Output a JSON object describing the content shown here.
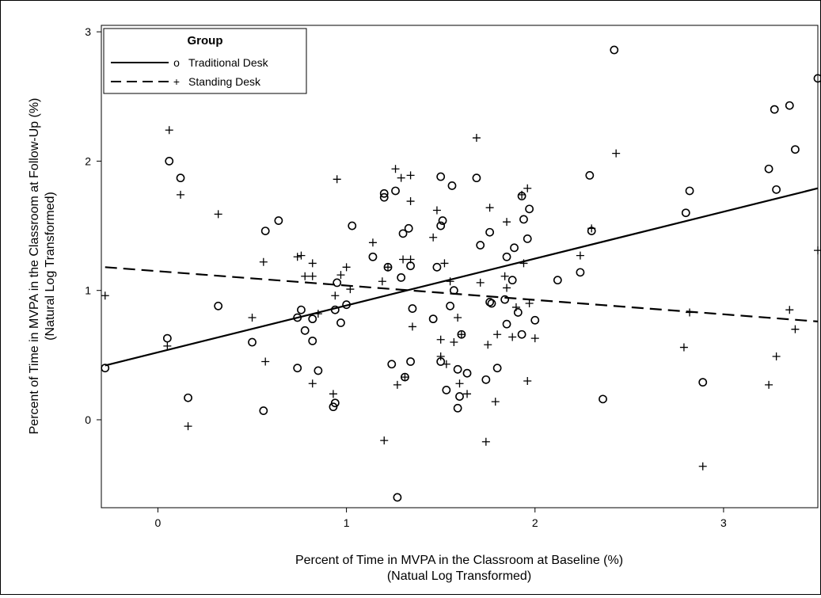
{
  "chart_data": {
    "type": "scatter",
    "xlabel_lines": [
      "Percent of Time in MVPA in the Classroom at Baseline (%)",
      "(Natual Log Transformed)"
    ],
    "ylabel_lines": [
      "Percent of Time in MVPA in the Classroom at Follow-Up (%)",
      "(Natural Log Transformed)"
    ],
    "xlim": [
      -0.3,
      3.5
    ],
    "ylim": [
      -0.68,
      3.05
    ],
    "x_ticks": [
      0,
      1,
      2,
      3
    ],
    "y_ticks": [
      0,
      1,
      2,
      3
    ],
    "grid": false,
    "legend": {
      "title": "Group",
      "placement": "top-left",
      "entries": [
        {
          "name": "Traditional Desk",
          "marker": "o",
          "line": "solid"
        },
        {
          "name": "Standing Desk",
          "marker": "+",
          "line": "dashed"
        }
      ]
    },
    "series": [
      {
        "name": "Traditional Desk",
        "marker": "circle",
        "fit_line": {
          "x": [
            -0.28,
            3.5
          ],
          "y": [
            0.42,
            1.79
          ]
        },
        "points": [
          [
            -0.28,
            0.4
          ],
          [
            0.05,
            0.63
          ],
          [
            0.06,
            2.0
          ],
          [
            0.12,
            1.87
          ],
          [
            0.16,
            0.17
          ],
          [
            0.32,
            0.88
          ],
          [
            0.5,
            0.6
          ],
          [
            0.56,
            0.07
          ],
          [
            0.57,
            1.46
          ],
          [
            0.64,
            1.54
          ],
          [
            0.74,
            0.79
          ],
          [
            0.74,
            0.4
          ],
          [
            0.76,
            0.85
          ],
          [
            0.78,
            0.69
          ],
          [
            0.82,
            0.61
          ],
          [
            0.82,
            0.78
          ],
          [
            0.85,
            0.38
          ],
          [
            0.93,
            0.1
          ],
          [
            0.94,
            0.13
          ],
          [
            0.95,
            1.06
          ],
          [
            0.94,
            0.85
          ],
          [
            0.97,
            0.75
          ],
          [
            1.0,
            0.89
          ],
          [
            1.03,
            1.5
          ],
          [
            1.14,
            1.26
          ],
          [
            1.2,
            1.75
          ],
          [
            1.2,
            1.72
          ],
          [
            1.22,
            1.18
          ],
          [
            1.24,
            0.43
          ],
          [
            1.26,
            1.77
          ],
          [
            1.27,
            -0.6
          ],
          [
            1.29,
            1.1
          ],
          [
            1.3,
            1.44
          ],
          [
            1.31,
            0.33
          ],
          [
            1.33,
            1.48
          ],
          [
            1.34,
            0.45
          ],
          [
            1.34,
            1.19
          ],
          [
            1.35,
            0.86
          ],
          [
            1.46,
            0.78
          ],
          [
            1.48,
            1.18
          ],
          [
            1.5,
            1.88
          ],
          [
            1.5,
            1.5
          ],
          [
            1.5,
            0.45
          ],
          [
            1.51,
            1.54
          ],
          [
            1.53,
            0.23
          ],
          [
            1.55,
            0.88
          ],
          [
            1.56,
            1.81
          ],
          [
            1.57,
            1.0
          ],
          [
            1.59,
            0.09
          ],
          [
            1.59,
            0.39
          ],
          [
            1.6,
            0.18
          ],
          [
            1.61,
            0.66
          ],
          [
            1.64,
            0.36
          ],
          [
            1.69,
            1.87
          ],
          [
            1.71,
            1.35
          ],
          [
            1.74,
            0.31
          ],
          [
            1.76,
            1.45
          ],
          [
            1.76,
            0.91
          ],
          [
            1.77,
            0.9
          ],
          [
            1.8,
            0.4
          ],
          [
            1.84,
            0.93
          ],
          [
            1.85,
            1.26
          ],
          [
            1.85,
            0.74
          ],
          [
            1.88,
            1.08
          ],
          [
            1.89,
            1.33
          ],
          [
            1.91,
            0.83
          ],
          [
            1.93,
            0.66
          ],
          [
            1.93,
            1.73
          ],
          [
            1.94,
            1.55
          ],
          [
            1.96,
            1.4
          ],
          [
            1.97,
            1.63
          ],
          [
            2.0,
            0.77
          ],
          [
            2.12,
            1.08
          ],
          [
            2.24,
            1.14
          ],
          [
            2.29,
            1.89
          ],
          [
            2.3,
            1.46
          ],
          [
            2.36,
            0.16
          ],
          [
            2.42,
            2.86
          ],
          [
            2.8,
            1.6
          ],
          [
            2.82,
            1.77
          ],
          [
            2.89,
            0.29
          ],
          [
            3.24,
            1.94
          ],
          [
            3.27,
            2.4
          ],
          [
            3.28,
            1.78
          ],
          [
            3.35,
            2.43
          ],
          [
            3.38,
            2.09
          ],
          [
            3.5,
            2.64
          ]
        ]
      },
      {
        "name": "Standing Desk",
        "marker": "plus",
        "fit_line": {
          "x": [
            -0.28,
            3.5
          ],
          "y": [
            1.18,
            0.76
          ]
        },
        "points": [
          [
            -0.28,
            0.96
          ],
          [
            0.05,
            0.57
          ],
          [
            0.06,
            2.24
          ],
          [
            0.12,
            1.74
          ],
          [
            0.16,
            -0.05
          ],
          [
            0.32,
            1.59
          ],
          [
            0.5,
            0.79
          ],
          [
            0.56,
            1.22
          ],
          [
            0.57,
            0.45
          ],
          [
            0.74,
            1.26
          ],
          [
            0.76,
            1.27
          ],
          [
            0.78,
            1.11
          ],
          [
            0.82,
            0.28
          ],
          [
            0.82,
            1.21
          ],
          [
            0.82,
            1.11
          ],
          [
            0.85,
            0.82
          ],
          [
            0.93,
            0.2
          ],
          [
            0.94,
            0.96
          ],
          [
            0.95,
            1.86
          ],
          [
            0.97,
            1.12
          ],
          [
            1.0,
            1.18
          ],
          [
            1.02,
            1.01
          ],
          [
            1.14,
            1.37
          ],
          [
            1.19,
            1.07
          ],
          [
            1.2,
            -0.16
          ],
          [
            1.22,
            1.18
          ],
          [
            1.26,
            1.94
          ],
          [
            1.27,
            0.27
          ],
          [
            1.29,
            1.87
          ],
          [
            1.3,
            1.24
          ],
          [
            1.31,
            0.33
          ],
          [
            1.34,
            1.89
          ],
          [
            1.34,
            1.69
          ],
          [
            1.34,
            1.24
          ],
          [
            1.35,
            0.72
          ],
          [
            1.46,
            1.41
          ],
          [
            1.48,
            1.62
          ],
          [
            1.5,
            0.62
          ],
          [
            1.5,
            0.49
          ],
          [
            1.52,
            1.21
          ],
          [
            1.53,
            0.43
          ],
          [
            1.55,
            1.07
          ],
          [
            1.57,
            0.6
          ],
          [
            1.59,
            0.79
          ],
          [
            1.6,
            0.28
          ],
          [
            1.61,
            0.66
          ],
          [
            1.64,
            0.2
          ],
          [
            1.69,
            2.18
          ],
          [
            1.71,
            1.06
          ],
          [
            1.74,
            -0.17
          ],
          [
            1.75,
            0.58
          ],
          [
            1.76,
            1.64
          ],
          [
            1.79,
            0.14
          ],
          [
            1.8,
            0.66
          ],
          [
            1.84,
            1.11
          ],
          [
            1.85,
            1.02
          ],
          [
            1.85,
            1.53
          ],
          [
            1.88,
            0.64
          ],
          [
            1.9,
            0.87
          ],
          [
            1.93,
            1.74
          ],
          [
            1.94,
            1.21
          ],
          [
            1.96,
            1.79
          ],
          [
            1.96,
            0.3
          ],
          [
            1.97,
            0.9
          ],
          [
            2.0,
            0.63
          ],
          [
            2.24,
            1.27
          ],
          [
            2.3,
            1.48
          ],
          [
            2.43,
            2.06
          ],
          [
            2.79,
            0.56
          ],
          [
            2.82,
            0.83
          ],
          [
            2.89,
            -0.36
          ],
          [
            3.24,
            0.27
          ],
          [
            3.28,
            0.49
          ],
          [
            3.35,
            0.85
          ],
          [
            3.38,
            0.7
          ],
          [
            3.5,
            1.31
          ]
        ]
      }
    ]
  }
}
